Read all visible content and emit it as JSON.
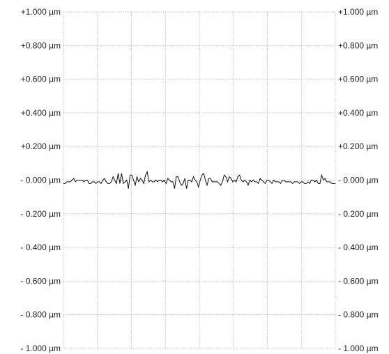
{
  "chart_data": {
    "type": "line",
    "title": "",
    "xlabel": "",
    "ylabel": "",
    "ylim": [
      -1.0,
      1.0
    ],
    "y_ticks": [
      1.0,
      0.8,
      0.6,
      0.4,
      0.2,
      0.0,
      -0.2,
      -0.4,
      -0.6,
      -0.8,
      -1.0
    ],
    "y_tick_labels": [
      "+1.000 µm",
      "+0.800 µm",
      "+0.600 µm",
      "+0.400 µm",
      "+0.200 µm",
      "- 0.000 µm",
      "- 0.200 µm",
      "- 0.400 µm",
      "- 0.600 µm",
      "- 0.800 µm",
      "- 1.000 µm"
    ],
    "tick_labels_on_both_sides": true,
    "x_grid_divisions": 8,
    "grid": true,
    "legend": "none",
    "series": [
      {
        "values": [
          -0.02,
          -0.02,
          -0.01,
          -0.01,
          -0.01,
          0.0,
          0.01,
          -0.01,
          0.0,
          0.0,
          0.0,
          0.0,
          -0.01,
          0.0,
          0.0,
          -0.02,
          -0.02,
          -0.01,
          -0.01,
          -0.02,
          -0.01,
          -0.01,
          -0.02,
          0.0,
          0.01,
          -0.01,
          -0.02,
          -0.02,
          -0.01,
          0.02,
          0.0,
          -0.02,
          0.04,
          -0.02,
          0.04,
          -0.02,
          -0.01,
          0.0,
          -0.05,
          0.03,
          0.03,
          0.0,
          -0.03,
          0.02,
          -0.01,
          0.01,
          0.0,
          -0.02,
          0.03,
          0.05,
          -0.01,
          0.0,
          -0.01,
          -0.01,
          0.0,
          -0.01,
          0.0,
          0.0,
          -0.01,
          0.0,
          -0.02,
          0.01,
          0.0,
          -0.01,
          -0.01,
          -0.05,
          0.02,
          0.02,
          -0.01,
          -0.03,
          -0.02,
          0.01,
          -0.05,
          0.0,
          0.0,
          -0.01,
          0.02,
          0.0,
          -0.01,
          -0.04,
          0.0,
          0.03,
          0.04,
          0.0,
          -0.03,
          0.01,
          0.01,
          -0.01,
          -0.01,
          -0.01,
          -0.01,
          -0.02,
          -0.03,
          -0.01,
          0.03,
          0.02,
          -0.01,
          0.02,
          0.01,
          -0.01,
          0.0,
          -0.01,
          0.02,
          0.03,
          0.0,
          -0.01,
          0.0,
          -0.01,
          -0.03,
          0.0,
          -0.01,
          0.0,
          -0.01,
          -0.01,
          -0.02,
          0.01,
          0.0,
          -0.01,
          -0.02,
          0.0,
          0.0,
          -0.01,
          -0.02,
          0.0,
          -0.01,
          -0.01,
          -0.01,
          -0.02,
          0.0,
          0.0,
          -0.01,
          -0.01,
          -0.01,
          -0.01,
          -0.02,
          -0.01,
          -0.01,
          -0.01,
          -0.02,
          -0.01,
          -0.01,
          -0.02,
          -0.02,
          -0.01,
          -0.02,
          0.0,
          0.0,
          -0.01,
          0.0,
          -0.02,
          -0.02,
          0.03,
          0.0,
          0.01,
          -0.01,
          -0.01,
          -0.01,
          -0.02,
          -0.02,
          -0.02
        ]
      }
    ]
  }
}
